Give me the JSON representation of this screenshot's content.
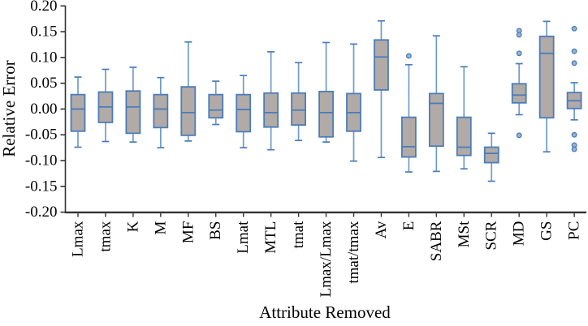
{
  "chart_data": {
    "type": "boxplot",
    "title": "",
    "xlabel": "Attribute Removed",
    "ylabel": "Relative Error",
    "ylim": [
      -0.2,
      0.2
    ],
    "ytick_step": 0.05,
    "yticks": [
      "0.20",
      "0.15",
      "0.10",
      "0.05",
      "0.00",
      "-0.05",
      "-0.10",
      "-0.15",
      "-0.20"
    ],
    "grid": false,
    "legend": "none",
    "categories": [
      "Lmax",
      "tmax",
      "K",
      "M",
      "MF",
      "BS",
      "Lmat",
      "MTL",
      "tmat",
      "Lmax/Lmax",
      "tmat/tmax",
      "Av",
      "E",
      "SABR",
      "MSt",
      "SCR",
      "MD",
      "GS",
      "PC"
    ],
    "boxes": [
      {
        "category": "Lmax",
        "whisker_low": -0.074,
        "q1": -0.043,
        "median": 0.0,
        "q3": 0.028,
        "whisker_high": 0.062,
        "outliers": []
      },
      {
        "category": "tmax",
        "whisker_low": -0.063,
        "q1": -0.026,
        "median": 0.004,
        "q3": 0.033,
        "whisker_high": 0.077,
        "outliers": []
      },
      {
        "category": "K",
        "whisker_low": -0.064,
        "q1": -0.047,
        "median": 0.004,
        "q3": 0.035,
        "whisker_high": 0.081,
        "outliers": []
      },
      {
        "category": "M",
        "whisker_low": -0.075,
        "q1": -0.036,
        "median": 0.0,
        "q3": 0.028,
        "whisker_high": 0.061,
        "outliers": []
      },
      {
        "category": "MF",
        "whisker_low": -0.062,
        "q1": -0.051,
        "median": -0.007,
        "q3": 0.043,
        "whisker_high": 0.13,
        "outliers": []
      },
      {
        "category": "BS",
        "whisker_low": -0.03,
        "q1": -0.017,
        "median": -0.002,
        "q3": 0.028,
        "whisker_high": 0.054,
        "outliers": []
      },
      {
        "category": "Lmat",
        "whisker_low": -0.075,
        "q1": -0.044,
        "median": -0.001,
        "q3": 0.028,
        "whisker_high": 0.065,
        "outliers": []
      },
      {
        "category": "MTL",
        "whisker_low": -0.079,
        "q1": -0.035,
        "median": -0.007,
        "q3": 0.031,
        "whisker_high": 0.111,
        "outliers": []
      },
      {
        "category": "tmat",
        "whisker_low": -0.061,
        "q1": -0.031,
        "median": -0.002,
        "q3": 0.031,
        "whisker_high": 0.09,
        "outliers": []
      },
      {
        "category": "Lmax/Lmax",
        "whisker_low": -0.064,
        "q1": -0.054,
        "median": -0.007,
        "q3": 0.034,
        "whisker_high": 0.129,
        "outliers": []
      },
      {
        "category": "tmat/tmax",
        "whisker_low": -0.101,
        "q1": -0.043,
        "median": -0.007,
        "q3": 0.03,
        "whisker_high": 0.126,
        "outliers": []
      },
      {
        "category": "Av",
        "whisker_low": -0.094,
        "q1": 0.037,
        "median": 0.101,
        "q3": 0.134,
        "whisker_high": 0.171,
        "outliers": []
      },
      {
        "category": "E",
        "whisker_low": -0.122,
        "q1": -0.093,
        "median": -0.073,
        "q3": -0.016,
        "whisker_high": 0.086,
        "outliers": [
          0.103
        ]
      },
      {
        "category": "SABR",
        "whisker_low": -0.121,
        "q1": -0.072,
        "median": 0.011,
        "q3": 0.03,
        "whisker_high": 0.142,
        "outliers": []
      },
      {
        "category": "MSt",
        "whisker_low": -0.116,
        "q1": -0.09,
        "median": -0.074,
        "q3": -0.016,
        "whisker_high": 0.082,
        "outliers": []
      },
      {
        "category": "SCR",
        "whisker_low": -0.14,
        "q1": -0.104,
        "median": -0.086,
        "q3": -0.074,
        "whisker_high": -0.047,
        "outliers": []
      },
      {
        "category": "MD",
        "whisker_low": -0.011,
        "q1": 0.012,
        "median": 0.027,
        "q3": 0.049,
        "whisker_high": 0.088,
        "outliers": [
          0.152,
          0.144,
          0.108,
          -0.051
        ]
      },
      {
        "category": "GS",
        "whisker_low": -0.083,
        "q1": -0.017,
        "median": 0.108,
        "q3": 0.141,
        "whisker_high": 0.17,
        "outliers": []
      },
      {
        "category": "PC",
        "whisker_low": -0.021,
        "q1": 0.001,
        "median": 0.016,
        "q3": 0.032,
        "whisker_high": 0.051,
        "outliers": [
          0.156,
          0.112,
          0.089,
          -0.05,
          -0.07,
          -0.078
        ]
      }
    ],
    "colors": {
      "box_fill": "#b1aaa7",
      "box_border": "#4a7dba",
      "whisker": "#6f9cc9",
      "median": "#4a7dba",
      "outlier_fill": "#9db3cc",
      "outlier_border": "#4a7dba",
      "axis": "#333333",
      "text": "#000000",
      "background": "#ffffff"
    }
  }
}
